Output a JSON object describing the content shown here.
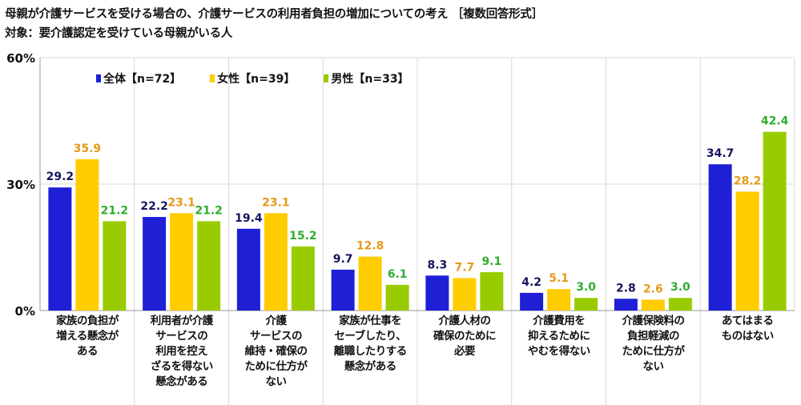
{
  "title": "母親が介護サービスを受ける場合の、介護サービスの利用者負担の増加についての考え ［複数回答形式］",
  "subtitle": "対象：要介護認定を受けている母親がいる人",
  "colors": {
    "全体": "#1f1fd6",
    "女性": "#ffcc00",
    "男性": "#99cc00",
    "label_全体": "#16165e",
    "label_女性": "#e69a1a",
    "label_男性": "#2fae2f",
    "grid": "#d9d9d9"
  },
  "chart_data": {
    "type": "bar",
    "title": "母親が介護サービスを受ける場合の、介護サービスの利用者負担の増加についての考え ［複数回答形式］",
    "ylim": [
      0,
      60
    ],
    "yticks": [
      "0%",
      "30%",
      "60%"
    ],
    "grid": true,
    "legend_position": "top-left",
    "categories": [
      [
        "家族の負担が",
        "増える懸念が",
        "ある"
      ],
      [
        "利用者が介護",
        "サービスの",
        "利用を控え",
        "ざるを得ない",
        "懸念がある"
      ],
      [
        "介護",
        "サービスの",
        "維持・確保の",
        "ために仕方が",
        "ない"
      ],
      [
        "家族が仕事を",
        "セーブしたり、",
        "離職したりする",
        "懸念がある"
      ],
      [
        "介護人材の",
        "確保のために",
        "必要"
      ],
      [
        "介護費用を",
        "抑えるために",
        "やむを得ない"
      ],
      [
        "介護保険料の",
        "負担軽減の",
        "ために仕方が",
        "ない"
      ],
      [
        "あてはまる",
        "ものはない"
      ]
    ],
    "series": [
      {
        "name": "全体【n=72】",
        "key": "全体",
        "values": [
          29.2,
          22.2,
          19.4,
          9.7,
          8.3,
          4.2,
          2.8,
          34.7
        ],
        "labels": [
          "29.2",
          "22.2",
          "19.4",
          "9.7",
          "8.3",
          "4.2",
          "2.8",
          "34.7"
        ]
      },
      {
        "name": "女性【n=39】",
        "key": "女性",
        "values": [
          35.9,
          23.1,
          23.1,
          12.8,
          7.7,
          5.1,
          2.6,
          28.2
        ],
        "labels": [
          "35.9",
          "23.1",
          "23.1",
          "12.8",
          "7.7",
          "5.1",
          "2.6",
          "28.2"
        ]
      },
      {
        "name": "男性【n=33】",
        "key": "男性",
        "values": [
          21.2,
          21.2,
          15.2,
          6.1,
          9.1,
          3.0,
          3.0,
          42.4
        ],
        "labels": [
          "21.2",
          "21.2",
          "15.2",
          "6.1",
          "9.1",
          "3.0",
          "3.0",
          "42.4"
        ]
      }
    ]
  }
}
